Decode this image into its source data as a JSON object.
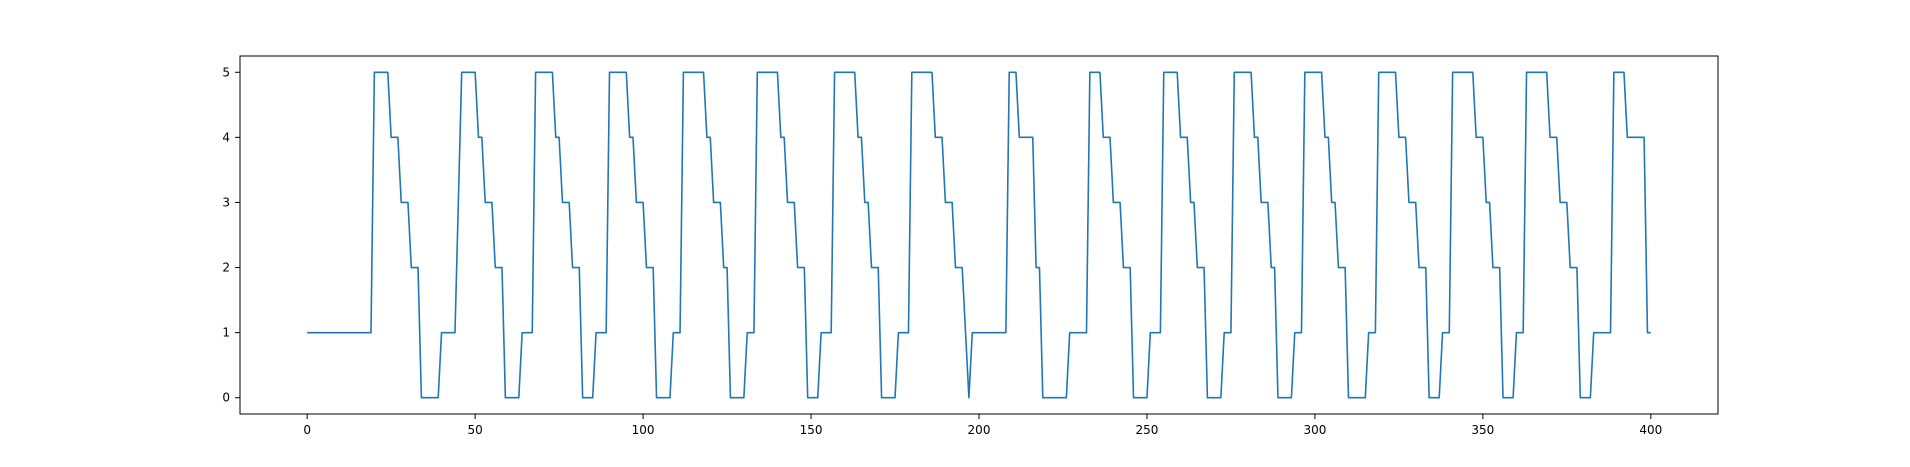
{
  "chart_data": {
    "type": "line",
    "title": "",
    "xlabel": "",
    "ylabel": "",
    "xlim": [
      -20,
      420
    ],
    "ylim": [
      -0.25,
      5.25
    ],
    "xticks": [
      0,
      50,
      100,
      150,
      200,
      250,
      300,
      350,
      400
    ],
    "yticks": [
      0,
      1,
      2,
      3,
      4,
      5
    ],
    "grid": false,
    "legend": "none",
    "series": [
      {
        "color": "#1f77b4",
        "points": [
          [
            0,
            1
          ],
          [
            19,
            1
          ],
          [
            20,
            5
          ],
          [
            24,
            5
          ],
          [
            25,
            4
          ],
          [
            27,
            4
          ],
          [
            28,
            3
          ],
          [
            30,
            3
          ],
          [
            31,
            2
          ],
          [
            33,
            2
          ],
          [
            34,
            0
          ],
          [
            39,
            0
          ],
          [
            40,
            1
          ],
          [
            44,
            1
          ],
          [
            46,
            5
          ],
          [
            50,
            5
          ],
          [
            51,
            4
          ],
          [
            52,
            4
          ],
          [
            53,
            3
          ],
          [
            55,
            3
          ],
          [
            56,
            2
          ],
          [
            58,
            2
          ],
          [
            59,
            0
          ],
          [
            63,
            0
          ],
          [
            64,
            1
          ],
          [
            67,
            1
          ],
          [
            68,
            5
          ],
          [
            73,
            5
          ],
          [
            74,
            4
          ],
          [
            75,
            4
          ],
          [
            76,
            3
          ],
          [
            78,
            3
          ],
          [
            79,
            2
          ],
          [
            81,
            2
          ],
          [
            82,
            0
          ],
          [
            85,
            0
          ],
          [
            86,
            1
          ],
          [
            89,
            1
          ],
          [
            90,
            5
          ],
          [
            95,
            5
          ],
          [
            96,
            4
          ],
          [
            97,
            4
          ],
          [
            98,
            3
          ],
          [
            100,
            3
          ],
          [
            101,
            2
          ],
          [
            103,
            2
          ],
          [
            104,
            0
          ],
          [
            108,
            0
          ],
          [
            109,
            1
          ],
          [
            111,
            1
          ],
          [
            112,
            5
          ],
          [
            118,
            5
          ],
          [
            119,
            4
          ],
          [
            120,
            4
          ],
          [
            121,
            3
          ],
          [
            123,
            3
          ],
          [
            124,
            2
          ],
          [
            125,
            2
          ],
          [
            126,
            0
          ],
          [
            130,
            0
          ],
          [
            131,
            1
          ],
          [
            133,
            1
          ],
          [
            134,
            5
          ],
          [
            140,
            5
          ],
          [
            141,
            4
          ],
          [
            142,
            4
          ],
          [
            143,
            3
          ],
          [
            145,
            3
          ],
          [
            146,
            2
          ],
          [
            148,
            2
          ],
          [
            149,
            0
          ],
          [
            152,
            0
          ],
          [
            153,
            1
          ],
          [
            156,
            1
          ],
          [
            157,
            5
          ],
          [
            163,
            5
          ],
          [
            164,
            4
          ],
          [
            165,
            4
          ],
          [
            166,
            3
          ],
          [
            167,
            3
          ],
          [
            168,
            2
          ],
          [
            170,
            2
          ],
          [
            171,
            0
          ],
          [
            175,
            0
          ],
          [
            176,
            1
          ],
          [
            179,
            1
          ],
          [
            180,
            5
          ],
          [
            186,
            5
          ],
          [
            187,
            4
          ],
          [
            189,
            4
          ],
          [
            190,
            3
          ],
          [
            192,
            3
          ],
          [
            193,
            2
          ],
          [
            195,
            2
          ],
          [
            197,
            0
          ],
          [
            198,
            1
          ],
          [
            208,
            1
          ],
          [
            209,
            5
          ],
          [
            211,
            5
          ],
          [
            212,
            4
          ],
          [
            216,
            4
          ],
          [
            217,
            2
          ],
          [
            218,
            2
          ],
          [
            219,
            0
          ],
          [
            226,
            0
          ],
          [
            227,
            1
          ],
          [
            232,
            1
          ],
          [
            233,
            5
          ],
          [
            236,
            5
          ],
          [
            237,
            4
          ],
          [
            239,
            4
          ],
          [
            240,
            3
          ],
          [
            242,
            3
          ],
          [
            243,
            2
          ],
          [
            245,
            2
          ],
          [
            246,
            0
          ],
          [
            250,
            0
          ],
          [
            251,
            1
          ],
          [
            254,
            1
          ],
          [
            255,
            5
          ],
          [
            259,
            5
          ],
          [
            260,
            4
          ],
          [
            262,
            4
          ],
          [
            263,
            3
          ],
          [
            264,
            3
          ],
          [
            265,
            2
          ],
          [
            267,
            2
          ],
          [
            268,
            0
          ],
          [
            272,
            0
          ],
          [
            273,
            1
          ],
          [
            275,
            1
          ],
          [
            276,
            5
          ],
          [
            281,
            5
          ],
          [
            282,
            4
          ],
          [
            283,
            4
          ],
          [
            284,
            3
          ],
          [
            286,
            3
          ],
          [
            287,
            2
          ],
          [
            288,
            2
          ],
          [
            289,
            0
          ],
          [
            293,
            0
          ],
          [
            294,
            1
          ],
          [
            296,
            1
          ],
          [
            297,
            5
          ],
          [
            302,
            5
          ],
          [
            303,
            4
          ],
          [
            304,
            4
          ],
          [
            305,
            3
          ],
          [
            306,
            3
          ],
          [
            307,
            2
          ],
          [
            309,
            2
          ],
          [
            310,
            0
          ],
          [
            315,
            0
          ],
          [
            316,
            1
          ],
          [
            318,
            1
          ],
          [
            319,
            5
          ],
          [
            324,
            5
          ],
          [
            325,
            4
          ],
          [
            327,
            4
          ],
          [
            328,
            3
          ],
          [
            330,
            3
          ],
          [
            331,
            2
          ],
          [
            333,
            2
          ],
          [
            334,
            0
          ],
          [
            337,
            0
          ],
          [
            338,
            1
          ],
          [
            340,
            1
          ],
          [
            341,
            5
          ],
          [
            347,
            5
          ],
          [
            348,
            4
          ],
          [
            350,
            4
          ],
          [
            351,
            3
          ],
          [
            352,
            3
          ],
          [
            353,
            2
          ],
          [
            355,
            2
          ],
          [
            356,
            0
          ],
          [
            359,
            0
          ],
          [
            360,
            1
          ],
          [
            362,
            1
          ],
          [
            363,
            5
          ],
          [
            369,
            5
          ],
          [
            370,
            4
          ],
          [
            372,
            4
          ],
          [
            373,
            3
          ],
          [
            375,
            3
          ],
          [
            376,
            2
          ],
          [
            378,
            2
          ],
          [
            379,
            0
          ],
          [
            382,
            0
          ],
          [
            383,
            1
          ],
          [
            388,
            1
          ],
          [
            389,
            5
          ],
          [
            392,
            5
          ],
          [
            393,
            4
          ],
          [
            398,
            4
          ],
          [
            399,
            1
          ],
          [
            400,
            1
          ]
        ]
      }
    ]
  }
}
